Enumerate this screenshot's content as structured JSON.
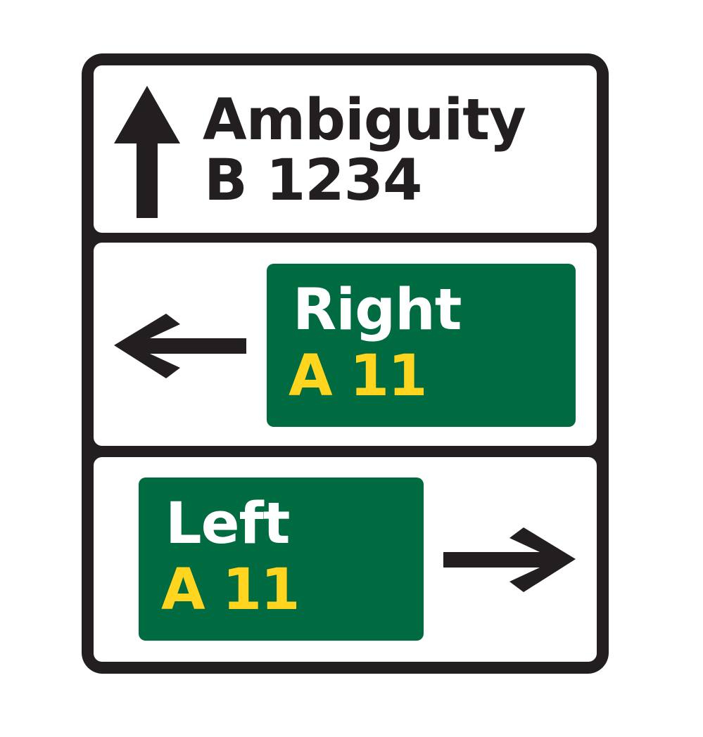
{
  "sign": {
    "ahead": {
      "destination": "Ambiguity",
      "route": "B 1234",
      "direction_icon": "arrow-up-icon"
    },
    "left_panel": {
      "destination": "Right",
      "route": "A 11",
      "direction_icon": "arrow-left-icon"
    },
    "right_panel": {
      "destination": "Left",
      "route": "A 11",
      "direction_icon": "arrow-right-icon"
    }
  },
  "colors": {
    "border": "#231f20",
    "background": "#ffffff",
    "primary_route_panel": "#006a41",
    "primary_route_number": "#ffd520",
    "primary_destination": "#ffffff",
    "local_text": "#231f20"
  }
}
